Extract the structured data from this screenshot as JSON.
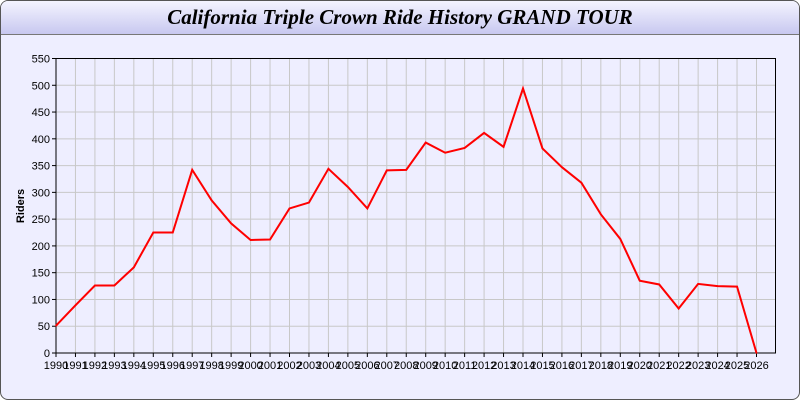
{
  "chart_data": {
    "type": "line",
    "title": "California Triple Crown Ride History GRAND TOUR",
    "xlabel": "",
    "ylabel": "Riders",
    "ylim": [
      0,
      550
    ],
    "yticks": [
      0,
      50,
      100,
      150,
      200,
      250,
      300,
      350,
      400,
      450,
      500,
      550
    ],
    "grid": true,
    "line_color": "#ff0000",
    "x": [
      1990,
      1991,
      1992,
      1993,
      1994,
      1995,
      1996,
      1997,
      1998,
      1999,
      2000,
      2001,
      2002,
      2003,
      2004,
      2005,
      2006,
      2007,
      2008,
      2009,
      2010,
      2011,
      2012,
      2013,
      2014,
      2015,
      2016,
      2017,
      2018,
      2019,
      2020,
      2021,
      2022,
      2023,
      2024,
      2025,
      2026
    ],
    "series": [
      {
        "values": [
          51,
          89,
          126,
          126,
          160,
          225,
          225,
          342,
          285,
          242,
          211,
          212,
          270,
          281,
          344,
          310,
          270,
          341,
          342,
          393,
          374,
          383,
          411,
          385,
          494,
          382,
          347,
          318,
          259,
          213,
          135,
          128,
          83,
          129,
          125,
          124,
          0
        ]
      }
    ]
  }
}
